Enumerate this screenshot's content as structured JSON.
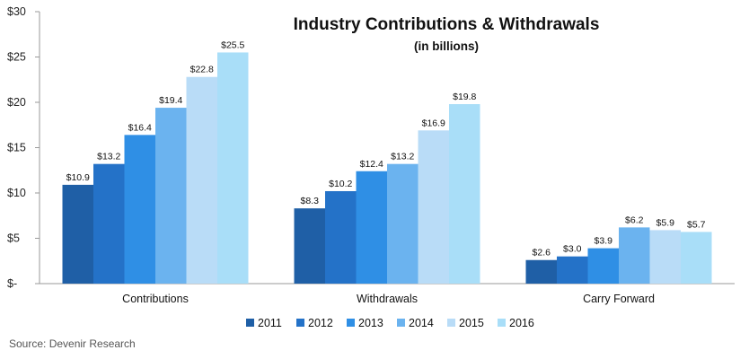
{
  "chart_data": {
    "type": "bar",
    "title": "Industry Contributions  & Withdrawals",
    "subtitle": "(in billions)",
    "xlabel": "",
    "ylabel": "",
    "ylim": [
      0,
      30
    ],
    "yticks": [
      0,
      5,
      10,
      15,
      20,
      25,
      30
    ],
    "ytick_labels": [
      "$-",
      "$5",
      "$10",
      "$15",
      "$20",
      "$25",
      "$30"
    ],
    "categories": [
      "Contributions",
      "Withdrawals",
      "Carry Forward"
    ],
    "series": [
      {
        "name": "2011",
        "color": "#1f5fa6",
        "values": [
          10.9,
          8.3,
          2.6
        ],
        "labels": [
          "$10.9",
          "$8.3",
          "$2.6"
        ]
      },
      {
        "name": "2012",
        "color": "#2472c8",
        "values": [
          13.2,
          10.2,
          3.0
        ],
        "labels": [
          "$13.2",
          "$10.2",
          "$3.0"
        ]
      },
      {
        "name": "2013",
        "color": "#2f8fe5",
        "values": [
          16.4,
          12.4,
          3.9
        ],
        "labels": [
          "$16.4",
          "$12.4",
          "$3.9"
        ]
      },
      {
        "name": "2014",
        "color": "#6bb3ef",
        "values": [
          19.4,
          13.2,
          6.2
        ],
        "labels": [
          "$19.4",
          "$13.2",
          "$6.2"
        ]
      },
      {
        "name": "2015",
        "color": "#b9dcf7",
        "values": [
          22.8,
          16.9,
          5.9
        ],
        "labels": [
          "$22.8",
          "$16.9",
          "$5.9"
        ]
      },
      {
        "name": "2016",
        "color": "#a9def8",
        "values": [
          25.5,
          19.8,
          5.7
        ],
        "labels": [
          "$25.5",
          "$19.8",
          "$5.7"
        ]
      }
    ],
    "legend_position": "bottom",
    "grid": false
  },
  "source": "Source: Devenir Research"
}
